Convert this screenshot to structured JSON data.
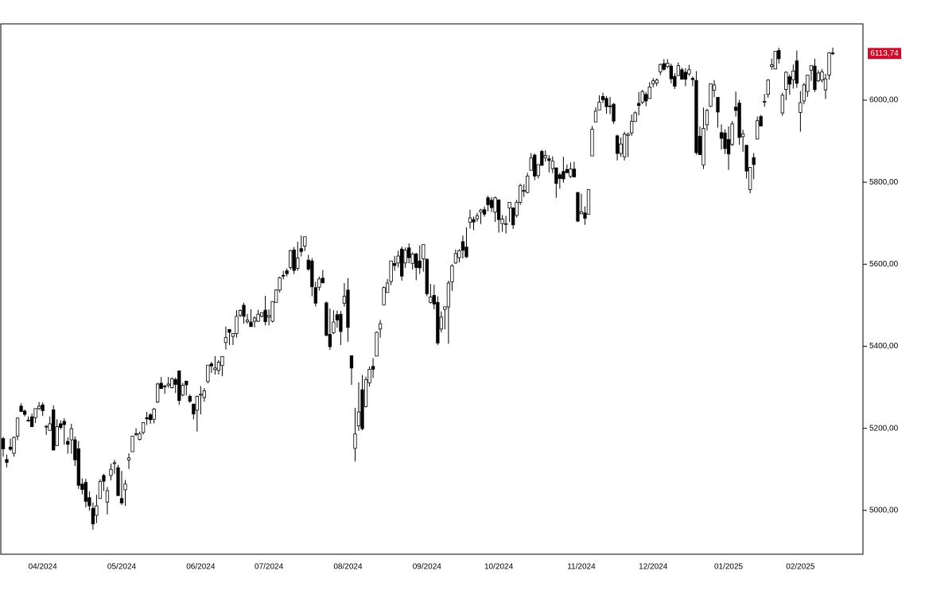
{
  "chart_data": {
    "type": "candlestick",
    "categories": [
      null,
      null,
      null,
      null,
      null,
      null,
      null,
      null,
      null,
      null,
      null,
      "04/2024",
      null,
      null,
      null,
      null,
      null,
      null,
      null,
      null,
      null,
      null,
      null,
      null,
      null,
      null,
      null,
      null,
      null,
      null,
      null,
      null,
      null,
      "05/2024",
      null,
      null,
      null,
      null,
      null,
      null,
      null,
      null,
      null,
      null,
      null,
      null,
      null,
      null,
      null,
      null,
      null,
      null,
      null,
      null,
      null,
      "06/2024",
      null,
      null,
      null,
      null,
      null,
      null,
      null,
      null,
      null,
      null,
      null,
      null,
      null,
      null,
      null,
      null,
      null,
      null,
      "07/2024",
      null,
      null,
      null,
      null,
      null,
      null,
      null,
      null,
      null,
      null,
      null,
      null,
      null,
      null,
      null,
      null,
      null,
      null,
      null,
      null,
      null,
      "08/2024",
      null,
      null,
      null,
      null,
      null,
      null,
      null,
      null,
      null,
      null,
      null,
      null,
      null,
      null,
      null,
      null,
      null,
      null,
      null,
      null,
      null,
      "09/2024",
      null,
      null,
      null,
      null,
      null,
      null,
      null,
      null,
      null,
      null,
      null,
      null,
      null,
      null,
      null,
      null,
      null,
      null,
      null,
      "10/2024",
      null,
      null,
      null,
      null,
      null,
      null,
      null,
      null,
      null,
      null,
      null,
      null,
      null,
      null,
      null,
      null,
      null,
      null,
      null,
      null,
      null,
      null,
      "11/2024",
      null,
      null,
      null,
      null,
      null,
      null,
      null,
      null,
      null,
      null,
      null,
      null,
      null,
      null,
      null,
      null,
      null,
      null,
      null,
      "12/2024",
      null,
      null,
      null,
      null,
      null,
      null,
      null,
      null,
      null,
      null,
      null,
      null,
      null,
      null,
      null,
      null,
      null,
      null,
      null,
      null,
      "01/2025",
      null,
      null,
      null,
      null,
      null,
      null,
      null,
      null,
      null,
      null,
      null,
      null,
      null,
      null,
      null,
      null,
      null,
      null,
      null,
      "02/2025",
      null,
      null,
      null,
      null,
      null,
      null,
      null,
      null,
      null
    ],
    "open": [
      5175,
      5124,
      5154,
      5139,
      5181,
      5254,
      5242,
      5220,
      5228,
      5226,
      5248,
      5257,
      5204,
      5195,
      5245,
      5158,
      5211,
      5217,
      5168,
      5172,
      5172,
      5150,
      5064,
      5068,
      5031,
      5005,
      4988,
      5029,
      5085,
      5020,
      5085,
      5114,
      5104,
      5029,
      5050,
      5123,
      5143,
      5187,
      5173,
      5190,
      5226,
      5233,
      5222,
      5264,
      5310,
      5303,
      5305,
      5299,
      5319,
      5340,
      5281,
      5315,
      5278,
      5259,
      5244,
      5283,
      5275,
      5314,
      5357,
      5343,
      5341,
      5353,
      5409,
      5441,
      5424,
      5431,
      5476,
      5500,
      5460,
      5459,
      5461,
      5461,
      5473,
      5488,
      5471,
      5461,
      5507,
      5537,
      5573,
      5584,
      5592,
      5635,
      5590,
      5638,
      5644,
      5610,
      5608,
      5543,
      5544,
      5566,
      5506,
      5429,
      5433,
      5477,
      5478,
      5505,
      5537,
      5377,
      5151,
      5206,
      5294,
      5253,
      5311,
      5351,
      5376,
      5442,
      5501,
      5531,
      5558,
      5602,
      5603,
      5637,
      5603,
      5640,
      5602,
      5625,
      5608,
      5613,
      5612,
      5507,
      5524,
      5507,
      5442,
      5490,
      5496,
      5557,
      5603,
      5616,
      5655,
      5642,
      5702,
      5709,
      5711,
      5727,
      5733,
      5762,
      5756,
      5727,
      5757,
      5699,
      5698,
      5737,
      5737,
      5719,
      5751,
      5778,
      5775,
      5829,
      5866,
      5816,
      5875,
      5860,
      5857,
      5833,
      5835,
      5818,
      5826,
      5831,
      5814,
      5832,
      5775,
      5723,
      5725,
      5722,
      5864,
      5947,
      5976,
      6009,
      6004,
      5986,
      5990,
      5913,
      5870,
      5862,
      5914,
      5920,
      5948,
      5992,
      5995,
      6014,
      6004,
      6040,
      6042,
      6069,
      6089,
      6082,
      6083,
      6058,
      6060,
      6074,
      6068,
      6064,
      6053,
      6048,
      5912,
      5842,
      5940,
      5985,
      6024,
      6007,
      5921,
      5920,
      5904,
      5892,
      5983,
      5993,
      5911,
      5890,
      5782,
      5860,
      5905,
      5960,
      5995,
      6014,
      6082,
      6076,
      6121,
      5969,
      6026,
      6057,
      6050,
      6096,
      5970,
      5998,
      6021,
      6073,
      6083,
      6047,
      6049,
      6025,
      6061,
      6115
    ],
    "high": [
      5179,
      5136,
      5175,
      5180,
      5226,
      5261,
      5246,
      5229,
      5236,
      5249,
      5264,
      5263,
      5208,
      5229,
      5256,
      5222,
      5219,
      5225,
      5178,
      5211,
      5180,
      5169,
      5078,
      5077,
      5046,
      5019,
      5038,
      5076,
      5089,
      5057,
      5114,
      5123,
      5111,
      5096,
      5074,
      5139,
      5182,
      5200,
      5192,
      5215,
      5240,
      5237,
      5250,
      5311,
      5325,
      5306,
      5325,
      5324,
      5324,
      5341,
      5311,
      5316,
      5283,
      5260,
      5280,
      5303,
      5298,
      5354,
      5362,
      5376,
      5366,
      5376,
      5448,
      5441,
      5432,
      5488,
      5490,
      5506,
      5479,
      5490,
      5473,
      5489,
      5483,
      5523,
      5490,
      5510,
      5539,
      5570,
      5584,
      5590,
      5635,
      5642,
      5655,
      5670,
      5667,
      5623,
      5615,
      5557,
      5570,
      5586,
      5509,
      5492,
      5488,
      5487,
      5486,
      5554,
      5566,
      5377,
      5250,
      5312,
      5330,
      5326,
      5351,
      5371,
      5436,
      5464,
      5546,
      5564,
      5608,
      5620,
      5633,
      5643,
      5641,
      5651,
      5629,
      5628,
      5646,
      5648,
      5614,
      5552,
      5550,
      5522,
      5485,
      5497,
      5560,
      5600,
      5636,
      5637,
      5670,
      5690,
      5733,
      5716,
      5725,
      5735,
      5741,
      5767,
      5764,
      5765,
      5757,
      5720,
      5718,
      5751,
      5739,
      5757,
      5796,
      5795,
      5823,
      5871,
      5870,
      5843,
      5879,
      5878,
      5866,
      5863,
      5835,
      5823,
      5862,
      5843,
      5848,
      5850,
      5775,
      5772,
      5741,
      5783,
      5937,
      5983,
      6012,
      6018,
      6010,
      6008,
      5993,
      5916,
      5909,
      5923,
      5921,
      5965,
      5973,
      6020,
      6025,
      6020,
      6044,
      6054,
      6053,
      6089,
      6100,
      6100,
      6089,
      6066,
      6092,
      6079,
      6078,
      6086,
      6058,
      6071,
      5936,
      5982,
      5979,
      6040,
      6049,
      6007,
      5941,
      5929,
      5936,
      5949,
      6021,
      6001,
      5928,
      5891,
      5837,
      5871,
      5960,
      5964,
      6015,
      6051,
      6101,
      6119,
      6128,
      6018,
      6070,
      6063,
      6087,
      6121,
      6022,
      6042,
      6062,
      6084,
      6101,
      6073,
      6076,
      6064,
      6117,
      6128
    ],
    "low": [
      5131,
      5105,
      5145,
      5131,
      5171,
      5240,
      5229,
      5216,
      5203,
      5213,
      5245,
      5230,
      5184,
      5194,
      5146,
      5157,
      5197,
      5160,
      5138,
      5138,
      5108,
      5052,
      5039,
      5007,
      4999,
      4953,
      4969,
      5028,
      5047,
      4990,
      5073,
      5089,
      5035,
      5013,
      5011,
      5101,
      5142,
      5181,
      5170,
      5185,
      5208,
      5211,
      5212,
      5262,
      5296,
      5284,
      5299,
      5297,
      5286,
      5257,
      5278,
      5280,
      5262,
      5222,
      5192,
      5234,
      5265,
      5310,
      5335,
      5331,
      5331,
      5327,
      5392,
      5403,
      5403,
      5421,
      5471,
      5455,
      5455,
      5447,
      5446,
      5459,
      5470,
      5451,
      5451,
      5458,
      5507,
      5531,
      5563,
      5570,
      5587,
      5576,
      5584,
      5619,
      5632,
      5584,
      5522,
      5497,
      5536,
      5553,
      5424,
      5391,
      5430,
      5445,
      5403,
      5497,
      5411,
      5306,
      5119,
      5194,
      5195,
      5251,
      5302,
      5323,
      5376,
      5421,
      5501,
      5531,
      5549,
      5584,
      5592,
      5560,
      5591,
      5602,
      5587,
      5561,
      5576,
      5582,
      5522,
      5504,
      5490,
      5403,
      5434,
      5441,
      5406,
      5535,
      5601,
      5604,
      5614,
      5615,
      5687,
      5683,
      5704,
      5698,
      5716,
      5729,
      5727,
      5703,
      5677,
      5679,
      5675,
      5703,
      5686,
      5714,
      5745,
      5764,
      5773,
      5829,
      5805,
      5809,
      5840,
      5850,
      5824,
      5822,
      5762,
      5784,
      5799,
      5823,
      5810,
      5811,
      5703,
      5723,
      5696,
      5722,
      5864,
      5947,
      5976,
      5993,
      5967,
      5966,
      5942,
      5853,
      5862,
      5853,
      5861,
      5913,
      5947,
      5963,
      5990,
      5985,
      6004,
      6031,
      6034,
      6061,
      6072,
      6078,
      6041,
      6027,
      6059,
      6051,
      6034,
      6059,
      6034,
      5867,
      5866,
      5832,
      5926,
      5983,
      6007,
      5933,
      5880,
      5869,
      5830,
      5888,
      5960,
      5891,
      5874,
      5809,
      5773,
      5807,
      5905,
      5938,
      5984,
      6006,
      6074,
      6075,
      6089,
      5962,
      6000,
      6013,
      6028,
      6030,
      5923,
      5990,
      6008,
      6047,
      6020,
      6044,
      6043,
      6003,
      6050,
      6110
    ],
    "close": [
      5150,
      5117,
      5149,
      5178,
      5225,
      5241,
      5234,
      5218,
      5204,
      5248,
      5254,
      5243,
      5205,
      5211,
      5147,
      5204,
      5202,
      5209,
      5161,
      5199,
      5123,
      5061,
      5051,
      5022,
      5011,
      4967,
      5011,
      5070,
      5071,
      5048,
      5100,
      5116,
      5036,
      5018,
      5064,
      5128,
      5181,
      5187,
      5187,
      5214,
      5223,
      5221,
      5247,
      5308,
      5297,
      5303,
      5308,
      5321,
      5307,
      5268,
      5305,
      5306,
      5266,
      5235,
      5278,
      5283,
      5291,
      5354,
      5352,
      5347,
      5361,
      5375,
      5421,
      5434,
      5431,
      5473,
      5487,
      5473,
      5464,
      5448,
      5469,
      5478,
      5482,
      5460,
      5475,
      5509,
      5537,
      5567,
      5572,
      5577,
      5633,
      5585,
      5615,
      5631,
      5667,
      5588,
      5545,
      5505,
      5564,
      5555,
      5427,
      5399,
      5459,
      5464,
      5436,
      5522,
      5446,
      5347,
      5186,
      5240,
      5199,
      5319,
      5344,
      5344,
      5434,
      5455,
      5543,
      5554,
      5608,
      5597,
      5620,
      5571,
      5634,
      5616,
      5625,
      5592,
      5591,
      5648,
      5528,
      5520,
      5503,
      5408,
      5471,
      5496,
      5554,
      5596,
      5626,
      5633,
      5634,
      5618,
      5713,
      5703,
      5718,
      5732,
      5722,
      5745,
      5738,
      5762,
      5709,
      5710,
      5699,
      5751,
      5696,
      5751,
      5792,
      5780,
      5815,
      5859,
      5815,
      5843,
      5841,
      5865,
      5853,
      5851,
      5797,
      5809,
      5808,
      5823,
      5832,
      5813,
      5705,
      5728,
      5712,
      5782,
      5929,
      5973,
      5995,
      6001,
      5984,
      5985,
      5949,
      5870,
      5893,
      5917,
      5917,
      5948,
      5969,
      5987,
      6021,
      5998,
      6032,
      6047,
      6049,
      6087,
      6075,
      6090,
      6052,
      6034,
      6084,
      6051,
      6051,
      6074,
      6050,
      5872,
      5867,
      5931,
      5975,
      6040,
      6037,
      5971,
      5907,
      5882,
      5869,
      5942,
      5975,
      5909,
      5918,
      5827,
      5836,
      5843,
      5950,
      5937,
      5997,
      6049,
      6086,
      6119,
      6101,
      6012,
      6068,
      6039,
      6071,
      6041,
      5994,
      6037,
      6061,
      6084,
      6026,
      6066,
      6069,
      6052,
      6115,
      6113.74
    ],
    "up_color": "#ffffff",
    "down_color": "#000000",
    "ylim": [
      4893,
      6186
    ],
    "yticks": [
      {
        "value": 5000,
        "label": "5000,00"
      },
      {
        "value": 5200,
        "label": "5200,00"
      },
      {
        "value": 5400,
        "label": "5400,00"
      },
      {
        "value": 5600,
        "label": "5600,00"
      },
      {
        "value": 5800,
        "label": "5800,00"
      },
      {
        "value": 6000,
        "label": "6000,00"
      }
    ],
    "last_price": {
      "value": 6113.74,
      "label": "6113,74"
    },
    "last_price_color": "#c8102e"
  }
}
